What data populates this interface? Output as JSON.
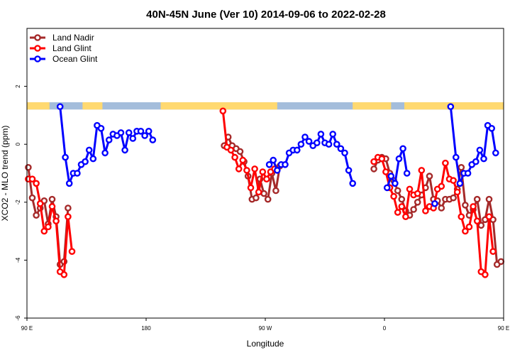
{
  "chart_data": {
    "type": "line",
    "title": "40N-45N June (Ver 10)   2014-09-06 to 2022-02-28",
    "xlabel": "Longitude",
    "ylabel": "XCO2 - MLO trend (ppm)",
    "xlim": [
      90,
      450
    ],
    "ylim": [
      -6,
      4
    ],
    "x_ticks": [
      {
        "value": 90,
        "label": "90 E"
      },
      {
        "value": 180,
        "label": "180"
      },
      {
        "value": 270,
        "label": "90 W"
      },
      {
        "value": 360,
        "label": "0"
      },
      {
        "value": 450,
        "label": "90 E"
      },
      {
        "value": 540,
        "label": "180"
      }
    ],
    "y_ticks": [
      {
        "value": -6,
        "label": "-6"
      },
      {
        "value": -4,
        "label": "-4"
      },
      {
        "value": -2,
        "label": "-2"
      },
      {
        "value": 0,
        "label": "0"
      },
      {
        "value": 2,
        "label": "2"
      }
    ],
    "legend_position": "top-left",
    "grid": false,
    "colors": {
      "land_nadir": "#a52a2a",
      "land_glint": "#ff0000",
      "ocean_glint": "#0000ff",
      "band_land": "#ffd970",
      "band_ocean": "#a4bddb"
    },
    "series": [
      {
        "name": "Land Nadir",
        "color_key": "land_nadir",
        "segments": [
          [
            [
              91,
              -0.8
            ],
            [
              94,
              -1.85
            ],
            [
              97,
              -2.45
            ],
            [
              100,
              -2.2
            ],
            [
              103,
              -1.95
            ],
            [
              106,
              -2.75
            ],
            [
              109,
              -1.9
            ],
            [
              112,
              -2.5
            ],
            [
              115,
              -4.15
            ],
            [
              118,
              -4.05
            ],
            [
              121,
              -2.2
            ]
          ],
          [
            [
              239,
              -0.05
            ],
            [
              242,
              0.25
            ],
            [
              245,
              -0.05
            ],
            [
              248,
              -0.15
            ],
            [
              251,
              -0.25
            ],
            [
              254,
              -0.6
            ],
            [
              257,
              -1.1
            ],
            [
              260,
              -1.9
            ],
            [
              263,
              -1.85
            ],
            [
              266,
              -1.2
            ],
            [
              269,
              -1.7
            ],
            [
              272,
              -1.9
            ],
            [
              275,
              -1.0
            ],
            [
              278,
              -1.6
            ],
            [
              281,
              -0.75
            ]
          ],
          [
            [
              352,
              -0.85
            ],
            [
              355,
              -0.55
            ],
            [
              358,
              -0.45
            ],
            [
              361,
              -0.5
            ],
            [
              364,
              -1.0
            ],
            [
              367,
              -1.25
            ],
            [
              370,
              -1.6
            ],
            [
              373,
              -1.9
            ],
            [
              376,
              -2.3
            ],
            [
              379,
              -2.45
            ],
            [
              382,
              -2.25
            ],
            [
              385,
              -2.0
            ],
            [
              388,
              -1.75
            ],
            [
              391,
              -1.5
            ],
            [
              394,
              -1.1
            ],
            [
              397,
              -1.9
            ],
            [
              400,
              -1.95
            ],
            [
              403,
              -2.2
            ],
            [
              406,
              -1.9
            ],
            [
              409,
              -1.9
            ],
            [
              412,
              -1.85
            ],
            [
              415,
              -1.55
            ],
            [
              418,
              -0.8
            ],
            [
              421,
              -2.1
            ],
            [
              424,
              -2.45
            ],
            [
              427,
              -2.25
            ],
            [
              430,
              -1.9
            ],
            [
              433,
              -2.8
            ],
            [
              436,
              -2.6
            ],
            [
              439,
              -1.9
            ],
            [
              442,
              -2.6
            ],
            [
              445,
              -4.15
            ],
            [
              448,
              -4.05
            ],
            [
              451,
              -2.2
            ]
          ]
        ]
      },
      {
        "name": "Land Glint",
        "color_key": "land_glint",
        "segments": [
          [
            [
              91,
              -1.2
            ],
            [
              94,
              -1.2
            ],
            [
              97,
              -1.35
            ],
            [
              100,
              -2.05
            ],
            [
              103,
              -3.0
            ],
            [
              106,
              -2.85
            ],
            [
              109,
              -2.15
            ],
            [
              112,
              -2.65
            ],
            [
              115,
              -4.4
            ],
            [
              118,
              -4.5
            ],
            [
              121,
              -2.5
            ],
            [
              124,
              -3.7
            ]
          ],
          [
            [
              238,
              1.15
            ],
            [
              241,
              -0.1
            ],
            [
              244,
              -0.2
            ],
            [
              247,
              -0.45
            ],
            [
              250,
              -0.85
            ],
            [
              253,
              -0.55
            ],
            [
              256,
              -0.9
            ],
            [
              259,
              -1.5
            ],
            [
              262,
              -0.85
            ],
            [
              265,
              -1.65
            ],
            [
              268,
              -0.95
            ],
            [
              271,
              -1.2
            ],
            [
              274,
              -0.95
            ],
            [
              277,
              -0.85
            ]
          ],
          [
            [
              352,
              -0.6
            ],
            [
              355,
              -0.45
            ],
            [
              358,
              -0.5
            ],
            [
              361,
              -0.95
            ],
            [
              364,
              -1.5
            ],
            [
              367,
              -1.8
            ],
            [
              370,
              -2.35
            ],
            [
              373,
              -2.15
            ],
            [
              376,
              -2.5
            ],
            [
              379,
              -1.55
            ],
            [
              382,
              -1.75
            ],
            [
              385,
              -1.7
            ],
            [
              388,
              -0.9
            ],
            [
              391,
              -2.3
            ],
            [
              394,
              -2.15
            ],
            [
              397,
              -2.2
            ],
            [
              400,
              -1.55
            ],
            [
              403,
              -1.45
            ],
            [
              406,
              -0.65
            ],
            [
              409,
              -1.2
            ],
            [
              412,
              -1.25
            ],
            [
              415,
              -1.65
            ],
            [
              418,
              -2.5
            ],
            [
              421,
              -3.0
            ],
            [
              424,
              -2.85
            ],
            [
              427,
              -2.15
            ],
            [
              430,
              -2.65
            ],
            [
              433,
              -4.4
            ],
            [
              436,
              -4.5
            ],
            [
              439,
              -2.5
            ],
            [
              442,
              -3.7
            ]
          ]
        ]
      },
      {
        "name": "Ocean Glint",
        "color_key": "ocean_glint",
        "segments": [
          [
            [
              115,
              1.3
            ],
            [
              119,
              -0.45
            ],
            [
              122,
              -1.35
            ],
            [
              125,
              -1.0
            ],
            [
              128,
              -1.0
            ],
            [
              131,
              -0.7
            ],
            [
              134,
              -0.6
            ],
            [
              137,
              -0.2
            ],
            [
              140,
              -0.5
            ],
            [
              143,
              0.65
            ],
            [
              146,
              0.55
            ],
            [
              149,
              -0.3
            ],
            [
              152,
              0.15
            ],
            [
              155,
              0.35
            ],
            [
              158,
              0.3
            ],
            [
              161,
              0.4
            ],
            [
              164,
              -0.2
            ],
            [
              167,
              0.4
            ],
            [
              170,
              0.2
            ],
            [
              173,
              0.45
            ],
            [
              176,
              0.45
            ],
            [
              179,
              0.3
            ],
            [
              182,
              0.45
            ],
            [
              185,
              0.15
            ]
          ],
          [
            [
              273,
              -0.7
            ],
            [
              276,
              -0.55
            ],
            [
              279,
              -0.9
            ],
            [
              282,
              -0.7
            ],
            [
              285,
              -0.7
            ],
            [
              288,
              -0.3
            ],
            [
              291,
              -0.2
            ],
            [
              294,
              -0.2
            ],
            [
              297,
              0.0
            ],
            [
              300,
              0.25
            ],
            [
              303,
              0.1
            ],
            [
              306,
              -0.05
            ],
            [
              309,
              0.05
            ],
            [
              312,
              0.35
            ],
            [
              315,
              0.05
            ],
            [
              318,
              0.0
            ],
            [
              321,
              0.35
            ],
            [
              324,
              0.0
            ],
            [
              327,
              -0.15
            ],
            [
              330,
              -0.3
            ],
            [
              333,
              -0.9
            ],
            [
              336,
              -1.35
            ]
          ],
          [
            [
              362,
              -1.5
            ],
            [
              365,
              -1.1
            ],
            [
              368,
              -1.35
            ],
            [
              371,
              -0.5
            ],
            [
              374,
              -0.15
            ],
            [
              377,
              -1.0
            ]
          ],
          [
            [
              398,
              -2.05
            ]
          ],
          [
            [
              410,
              1.3
            ],
            [
              414,
              -0.45
            ],
            [
              417,
              -1.35
            ],
            [
              420,
              -1.0
            ],
            [
              423,
              -1.0
            ],
            [
              426,
              -0.7
            ],
            [
              429,
              -0.6
            ],
            [
              432,
              -0.2
            ],
            [
              435,
              -0.5
            ],
            [
              438,
              0.65
            ],
            [
              441,
              0.55
            ],
            [
              444,
              -0.3
            ]
          ]
        ]
      }
    ],
    "surface_band": {
      "y_range": [
        1.2,
        1.45
      ],
      "land_intervals": [
        [
          90,
          107
        ],
        [
          132,
          147
        ],
        [
          191,
          279
        ],
        [
          336,
          365
        ],
        [
          375,
          485
        ],
        [
          516,
          533
        ]
      ]
    }
  }
}
